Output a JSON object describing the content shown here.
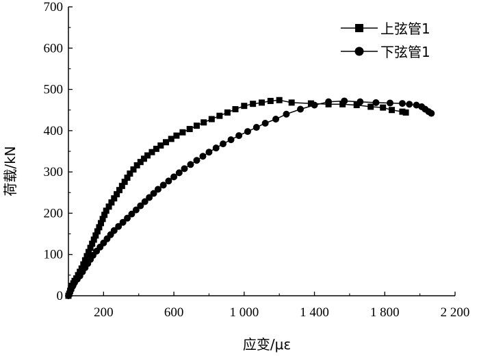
{
  "chart_data": {
    "type": "line",
    "title": "",
    "xlabel": "应变/με",
    "ylabel": "荷载/kN",
    "xlim": [
      0,
      2200
    ],
    "ylim": [
      0,
      700
    ],
    "x_ticks": [
      200,
      600,
      1000,
      1400,
      1800,
      2200
    ],
    "x_tick_labels": [
      "200",
      "600",
      "1 000",
      "1 400",
      "1 800",
      "2 200"
    ],
    "y_ticks": [
      0,
      100,
      200,
      300,
      400,
      500,
      600,
      700
    ],
    "y_tick_labels": [
      "0",
      "100",
      "200",
      "300",
      "400",
      "500",
      "600",
      "700"
    ],
    "grid": false,
    "legend_position": "top-right",
    "series": [
      {
        "name": "上弦管1",
        "marker": "square",
        "points": [
          [
            0,
            0
          ],
          [
            5,
            5
          ],
          [
            10,
            12
          ],
          [
            15,
            18
          ],
          [
            20,
            24
          ],
          [
            28,
            30
          ],
          [
            35,
            36
          ],
          [
            45,
            42
          ],
          [
            55,
            50
          ],
          [
            65,
            58
          ],
          [
            75,
            66
          ],
          [
            85,
            76
          ],
          [
            95,
            86
          ],
          [
            105,
            96
          ],
          [
            115,
            106
          ],
          [
            125,
            116
          ],
          [
            135,
            126
          ],
          [
            145,
            136
          ],
          [
            155,
            146
          ],
          [
            165,
            156
          ],
          [
            175,
            166
          ],
          [
            185,
            176
          ],
          [
            195,
            186
          ],
          [
            205,
            196
          ],
          [
            215,
            206
          ],
          [
            230,
            216
          ],
          [
            245,
            226
          ],
          [
            260,
            236
          ],
          [
            275,
            246
          ],
          [
            290,
            256
          ],
          [
            305,
            266
          ],
          [
            320,
            276
          ],
          [
            335,
            286
          ],
          [
            350,
            296
          ],
          [
            370,
            306
          ],
          [
            390,
            316
          ],
          [
            410,
            324
          ],
          [
            430,
            332
          ],
          [
            450,
            340
          ],
          [
            475,
            348
          ],
          [
            500,
            356
          ],
          [
            525,
            364
          ],
          [
            555,
            372
          ],
          [
            585,
            380
          ],
          [
            615,
            388
          ],
          [
            650,
            396
          ],
          [
            690,
            404
          ],
          [
            730,
            412
          ],
          [
            770,
            420
          ],
          [
            815,
            428
          ],
          [
            860,
            436
          ],
          [
            905,
            444
          ],
          [
            950,
            452
          ],
          [
            1000,
            460
          ],
          [
            1050,
            465
          ],
          [
            1100,
            468
          ],
          [
            1150,
            472
          ],
          [
            1200,
            474
          ],
          [
            1270,
            468
          ],
          [
            1380,
            466
          ],
          [
            1480,
            464
          ],
          [
            1560,
            464
          ],
          [
            1640,
            462
          ],
          [
            1720,
            458
          ],
          [
            1790,
            456
          ],
          [
            1840,
            450
          ],
          [
            1900,
            446
          ],
          [
            1920,
            444
          ]
        ]
      },
      {
        "name": "下弦管1",
        "marker": "circle",
        "points": [
          [
            0,
            0
          ],
          [
            8,
            8
          ],
          [
            15,
            15
          ],
          [
            25,
            24
          ],
          [
            35,
            32
          ],
          [
            50,
            40
          ],
          [
            65,
            48
          ],
          [
            80,
            58
          ],
          [
            95,
            68
          ],
          [
            110,
            78
          ],
          [
            125,
            88
          ],
          [
            140,
            98
          ],
          [
            160,
            108
          ],
          [
            180,
            118
          ],
          [
            200,
            128
          ],
          [
            220,
            138
          ],
          [
            240,
            148
          ],
          [
            260,
            158
          ],
          [
            285,
            168
          ],
          [
            310,
            178
          ],
          [
            335,
            188
          ],
          [
            360,
            198
          ],
          [
            385,
            208
          ],
          [
            410,
            218
          ],
          [
            435,
            228
          ],
          [
            460,
            238
          ],
          [
            485,
            248
          ],
          [
            510,
            258
          ],
          [
            540,
            268
          ],
          [
            570,
            278
          ],
          [
            600,
            288
          ],
          [
            630,
            298
          ],
          [
            660,
            308
          ],
          [
            695,
            318
          ],
          [
            730,
            328
          ],
          [
            765,
            338
          ],
          [
            800,
            348
          ],
          [
            840,
            358
          ],
          [
            880,
            368
          ],
          [
            925,
            378
          ],
          [
            970,
            388
          ],
          [
            1020,
            398
          ],
          [
            1070,
            408
          ],
          [
            1120,
            418
          ],
          [
            1180,
            428
          ],
          [
            1240,
            440
          ],
          [
            1320,
            452
          ],
          [
            1400,
            462
          ],
          [
            1480,
            470
          ],
          [
            1570,
            472
          ],
          [
            1660,
            470
          ],
          [
            1750,
            468
          ],
          [
            1830,
            467
          ],
          [
            1900,
            466
          ],
          [
            1940,
            464
          ],
          [
            1980,
            462
          ],
          [
            2010,
            458
          ],
          [
            2030,
            452
          ],
          [
            2050,
            446
          ],
          [
            2065,
            442
          ]
        ]
      }
    ]
  }
}
